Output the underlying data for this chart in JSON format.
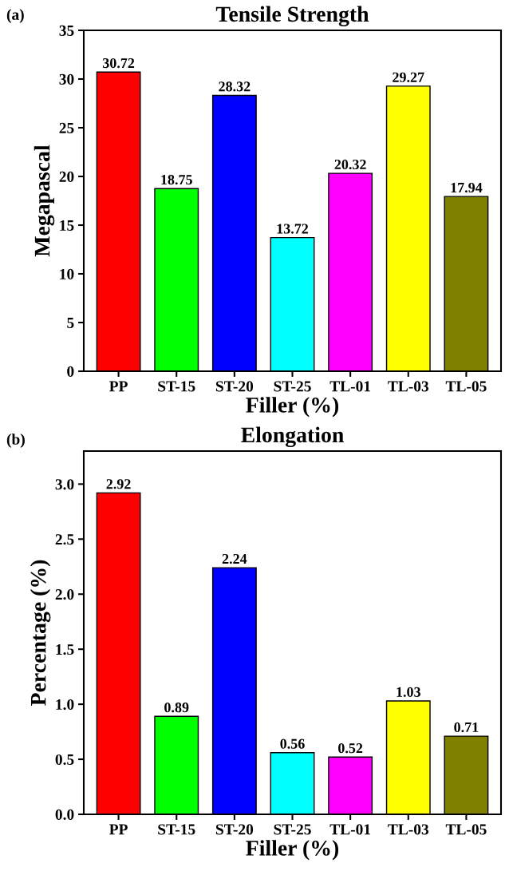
{
  "chart_data": [
    {
      "type": "bar",
      "title": "Tensile Strength",
      "xlabel": "Filler (%)",
      "ylabel": "Megapascal",
      "annotations": [
        "(a)"
      ],
      "categories": [
        "PP",
        "ST-15",
        "ST-20",
        "ST-25",
        "TL-01",
        "TL-03",
        "TL-05"
      ],
      "values": [
        30.72,
        18.75,
        28.32,
        13.72,
        20.32,
        29.27,
        17.94
      ],
      "colors": [
        "#ff0000",
        "#00ff00",
        "#0000ff",
        "#00ffff",
        "#ff00ff",
        "#ffff00",
        "#808000"
      ],
      "ylim": [
        0,
        35
      ],
      "yticks": [
        0,
        5,
        10,
        15,
        20,
        25,
        30,
        35
      ],
      "data_labels": true,
      "grid": false,
      "legend": false
    },
    {
      "type": "bar",
      "title": "Elongation",
      "xlabel": "Filler (%)",
      "ylabel": "Percentage (%)",
      "annotations": [
        "(b)"
      ],
      "categories": [
        "PP",
        "ST-15",
        "ST-20",
        "ST-25",
        "TL-01",
        "TL-03",
        "TL-05"
      ],
      "values": [
        2.92,
        0.89,
        2.24,
        0.56,
        0.52,
        1.03,
        0.71
      ],
      "colors": [
        "#ff0000",
        "#00ff00",
        "#0000ff",
        "#00ffff",
        "#ff00ff",
        "#ffff00",
        "#808000"
      ],
      "ylim": [
        0,
        3.3
      ],
      "yticks": [
        {
          "value": 0,
          "label": "0.0"
        },
        {
          "value": 0.5,
          "label": "0.5"
        },
        {
          "value": 1,
          "label": "1.0"
        },
        {
          "value": 1.5,
          "label": "1.5"
        },
        {
          "value": 2,
          "label": "2.0"
        },
        {
          "value": 2.5,
          "label": "2.5"
        },
        {
          "value": 3,
          "label": "3.0"
        }
      ],
      "data_labels": true,
      "grid": false,
      "legend": false
    }
  ]
}
